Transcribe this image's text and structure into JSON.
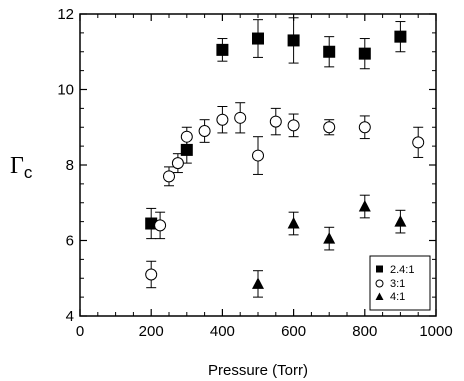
{
  "chart_data": {
    "type": "scatter",
    "title": "",
    "xlabel": "Pressure (Torr)",
    "ylabel": "Γc",
    "ylabel_main": "Γ",
    "ylabel_sub": "c",
    "xlim": [
      0,
      1000
    ],
    "ylim": [
      4,
      12
    ],
    "x_ticks": [
      0,
      200,
      400,
      600,
      800,
      1000
    ],
    "y_ticks": [
      4,
      6,
      8,
      10,
      12
    ],
    "grid": false,
    "legend_position": "bottom-right",
    "series": [
      {
        "name": "2.4:1",
        "marker": "filled-square",
        "points": [
          {
            "x": 200,
            "y": 6.45,
            "err": 0.4
          },
          {
            "x": 300,
            "y": 8.4,
            "err": 0.35
          },
          {
            "x": 400,
            "y": 11.05,
            "err": 0.3
          },
          {
            "x": 500,
            "y": 11.35,
            "err": 0.5
          },
          {
            "x": 600,
            "y": 11.3,
            "err": 0.6
          },
          {
            "x": 700,
            "y": 11.0,
            "err": 0.4
          },
          {
            "x": 800,
            "y": 10.95,
            "err": 0.4
          },
          {
            "x": 900,
            "y": 11.4,
            "err": 0.4
          }
        ]
      },
      {
        "name": "3:1",
        "marker": "open-circle",
        "points": [
          {
            "x": 200,
            "y": 5.1,
            "err": 0.35
          },
          {
            "x": 225,
            "y": 6.4,
            "err": 0.35
          },
          {
            "x": 250,
            "y": 7.7,
            "err": 0.25
          },
          {
            "x": 275,
            "y": 8.05,
            "err": 0.25
          },
          {
            "x": 300,
            "y": 8.75,
            "err": 0.25
          },
          {
            "x": 350,
            "y": 8.9,
            "err": 0.3
          },
          {
            "x": 400,
            "y": 9.2,
            "err": 0.35
          },
          {
            "x": 450,
            "y": 9.25,
            "err": 0.4
          },
          {
            "x": 500,
            "y": 8.25,
            "err": 0.5
          },
          {
            "x": 550,
            "y": 9.15,
            "err": 0.35
          },
          {
            "x": 600,
            "y": 9.05,
            "err": 0.3
          },
          {
            "x": 700,
            "y": 9.0,
            "err": 0.2
          },
          {
            "x": 800,
            "y": 9.0,
            "err": 0.3
          },
          {
            "x": 950,
            "y": 8.6,
            "err": 0.4
          }
        ]
      },
      {
        "name": "4:1",
        "marker": "filled-triangle",
        "points": [
          {
            "x": 500,
            "y": 4.85,
            "err": 0.35
          },
          {
            "x": 600,
            "y": 6.45,
            "err": 0.3
          },
          {
            "x": 700,
            "y": 6.05,
            "err": 0.3
          },
          {
            "x": 800,
            "y": 6.9,
            "err": 0.3
          },
          {
            "x": 900,
            "y": 6.5,
            "err": 0.3
          }
        ]
      }
    ]
  }
}
